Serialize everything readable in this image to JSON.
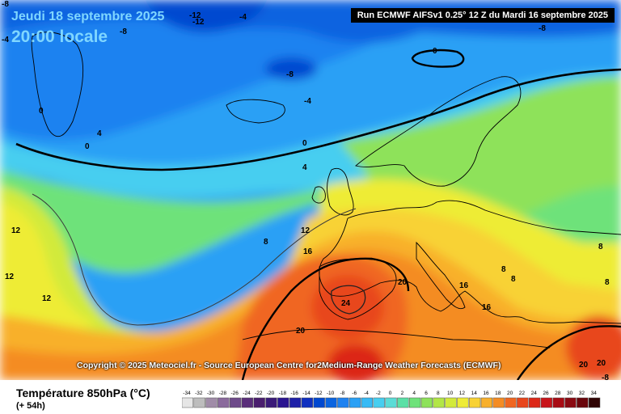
{
  "header": {
    "date": "Jeudi 18 septembre 2025",
    "time": "20:00 locale",
    "run": "Run ECMWF AIFSv1 0.25° 12 Z du Mardi 16 septembre 2025"
  },
  "copyright": "Copyright © 2025 Meteociel.fr - Source European Centre for2Medium-Range Weather Forecasts (ECMWF)",
  "legend": {
    "title": "Température 850hPa (°C)",
    "subtitle": "(+ 54h)",
    "ticks": [
      "-34",
      "-32",
      "-30",
      "-28",
      "-26",
      "-24",
      "-22",
      "-20",
      "-18",
      "-16",
      "-14",
      "-12",
      "-10",
      "-8",
      "-6",
      "-4",
      "-2",
      "0",
      "2",
      "4",
      "6",
      "8",
      "10",
      "12",
      "14",
      "16",
      "18",
      "20",
      "22",
      "24",
      "26",
      "28",
      "30",
      "32",
      "34"
    ],
    "colors": [
      "#e6e6e6",
      "#bdbdbd",
      "#a08ca8",
      "#8a6a9c",
      "#6e4a8a",
      "#5a2e7a",
      "#4a1e6e",
      "#3a1a78",
      "#2a1490",
      "#1e20a8",
      "#1030c0",
      "#0048d0",
      "#0a64e0",
      "#1e82f0",
      "#2aa0f5",
      "#36baf5",
      "#46cef0",
      "#5adcd6",
      "#5ae0a6",
      "#6ee27a",
      "#8ee25a",
      "#b2e646",
      "#d2ea3a",
      "#eeec36",
      "#f8d234",
      "#f8b02c",
      "#f48c24",
      "#f06620",
      "#e8461c",
      "#dc2818",
      "#c8141a",
      "#a80c14",
      "#8a0a12",
      "#6a060c",
      "#300404"
    ]
  },
  "map_labels": {
    "neg12a": "-12",
    "neg12b": "-12",
    "neg4a": "-4",
    "neg8a": "-8",
    "neg8b": "-8",
    "neg8c": "-8",
    "neg8d": "-8",
    "neg4b": "-4",
    "neg4c": "-4",
    "zero1": "0",
    "zero2": "0",
    "zero3": "0",
    "zero4": "0",
    "four1": "4",
    "four2": "4",
    "eight1": "8",
    "twelve1": "12",
    "twelve2": "12",
    "twelve3": "12",
    "twelve4": "12",
    "sixteen1": "16",
    "sixteen2": "16",
    "sixteen3": "16",
    "twenty1": "20",
    "twenty2": "20",
    "twenty3": "20",
    "twenty4": "20",
    "twentyfour": "24",
    "eight2": "8",
    "eight3": "8",
    "eight4": "8",
    "eight5": "8",
    "neg8e": "-8"
  }
}
